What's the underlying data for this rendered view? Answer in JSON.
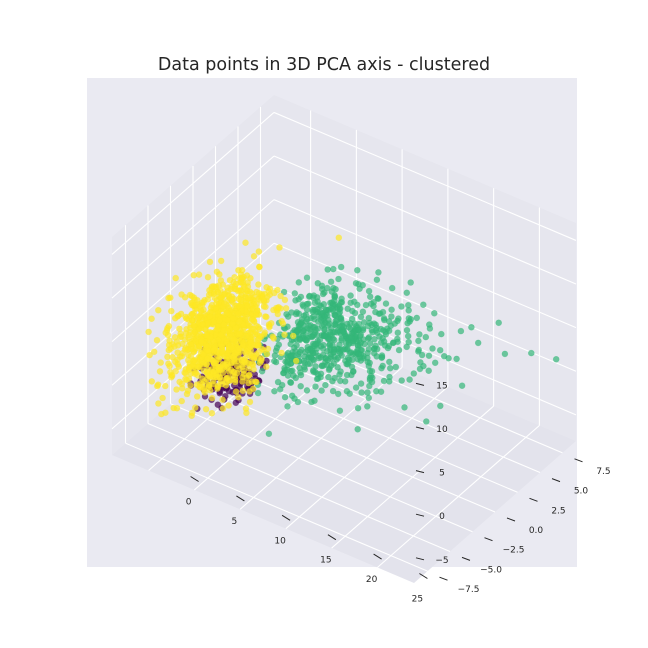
{
  "chart_data": {
    "type": "scatter",
    "projection": "3d",
    "title": "Data points in 3D PCA axis - clustered",
    "xlabel": "",
    "ylabel": "",
    "zlabel": "",
    "x_ticks": [
      "0",
      "5",
      "10",
      "15",
      "20",
      "25"
    ],
    "y_ticks": [
      "−7.5",
      "−5.0",
      "−2.5",
      "0.0",
      "2.5",
      "5.0",
      "7.5"
    ],
    "z_ticks": [
      "−5",
      "0",
      "5",
      "10",
      "15"
    ],
    "xlim": [
      -4,
      29
    ],
    "ylim": [
      -9,
      9
    ],
    "zlim": [
      -8,
      17
    ],
    "grid": true,
    "legend": "none",
    "background_color": "#eaeaf2",
    "series": [
      {
        "color": "#fde725",
        "cluster": "yellow",
        "approx_count": 4000,
        "center": [
          2,
          -3,
          3
        ],
        "spread": [
          1.8,
          2.2,
          2.6
        ],
        "points": [
          [
            2.0,
            -3.0,
            3.0
          ],
          [
            1.5,
            -4.0,
            5.0
          ],
          [
            3.0,
            -2.0,
            1.0
          ],
          [
            0.5,
            -3.5,
            4.0
          ],
          [
            2.5,
            -1.5,
            6.0
          ],
          [
            8.0,
            4.0,
            10.5
          ]
        ]
      },
      {
        "color": "#35b779",
        "cluster": "green",
        "approx_count": 2500,
        "center": [
          6,
          0.5,
          1.5
        ],
        "spread": [
          3.5,
          1.8,
          2.6
        ],
        "points": [
          [
            6.0,
            0.5,
            1.5
          ],
          [
            10.0,
            1.0,
            3.0
          ],
          [
            14.0,
            2.0,
            5.0
          ],
          [
            18.0,
            3.5,
            4.0
          ],
          [
            22.0,
            4.5,
            6.0
          ],
          [
            24.0,
            5.5,
            6.5
          ],
          [
            20.0,
            4.0,
            2.0
          ],
          [
            13.0,
            2.5,
            6.5
          ],
          [
            11.0,
            3.0,
            9.0
          ]
        ]
      },
      {
        "color": "#440154",
        "cluster": "purple",
        "approx_count": 600,
        "center": [
          1.5,
          -1.5,
          -3
        ],
        "spread": [
          1.5,
          1.2,
          1.1
        ],
        "points": [
          [
            1.5,
            -1.5,
            -3.0
          ],
          [
            2.5,
            -1.0,
            -2.5
          ],
          [
            0.5,
            -2.0,
            -3.5
          ]
        ]
      }
    ],
    "marker_alpha": 0.7
  }
}
